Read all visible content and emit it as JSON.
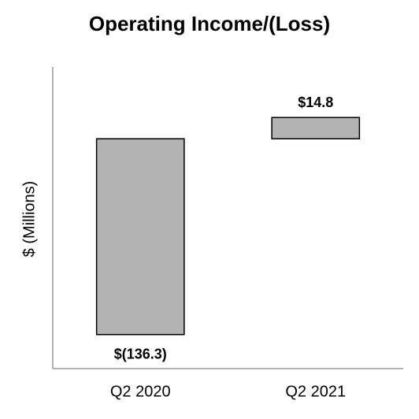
{
  "chart_data": {
    "type": "bar",
    "title": "Operating Income/(Loss)",
    "y_label": "$ (Millions)",
    "categories": [
      "Q2 2020",
      "Q2 2021"
    ],
    "values": [
      -136.3,
      14.8
    ],
    "value_labels": [
      "$(136.3)",
      "$14.8"
    ],
    "color": "#b3b3b3",
    "ylim": [
      -160,
      50
    ]
  }
}
